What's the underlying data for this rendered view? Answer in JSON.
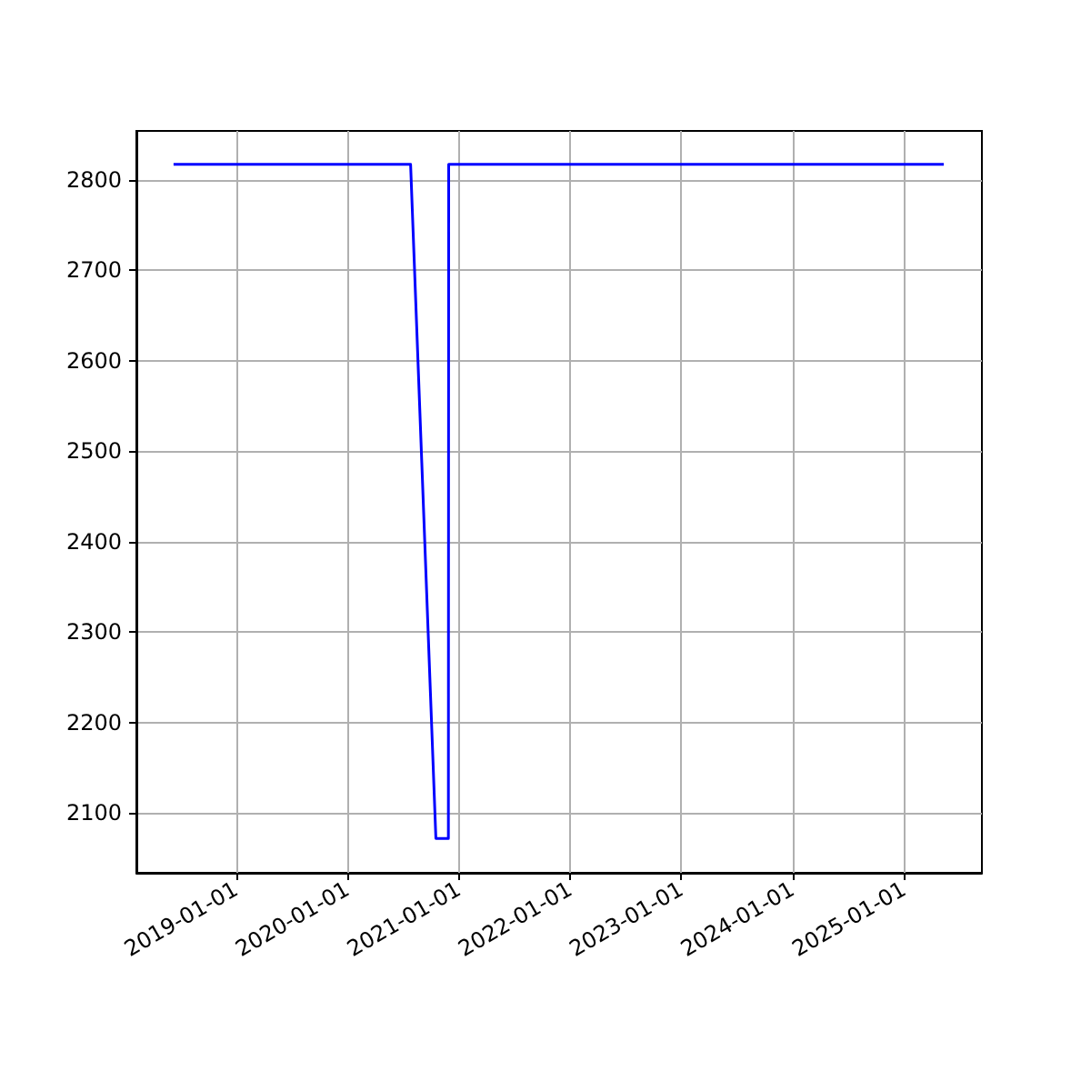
{
  "chart_data": {
    "type": "line",
    "x": [
      "2018-06-10",
      "2020-07-27",
      "2020-10-18",
      "2020-11-28",
      "2020-11-29",
      "2025-05-12"
    ],
    "series": [
      {
        "color": "#0000ff",
        "values": [
          2817,
          2817,
          2072,
          2072,
          2817,
          2817
        ]
      }
    ],
    "xlim": [
      "2018-02-08",
      "2025-09-14"
    ],
    "xticks": [
      "2019-01-01",
      "2020-01-01",
      "2021-01-01",
      "2022-01-01",
      "2023-01-01",
      "2024-01-01",
      "2025-01-01"
    ],
    "ylim": [
      2034,
      2854
    ],
    "yticks": [
      2100,
      2200,
      2300,
      2400,
      2500,
      2600,
      2700,
      2800
    ],
    "grid": true,
    "marker": "none",
    "line_style": "solid"
  }
}
